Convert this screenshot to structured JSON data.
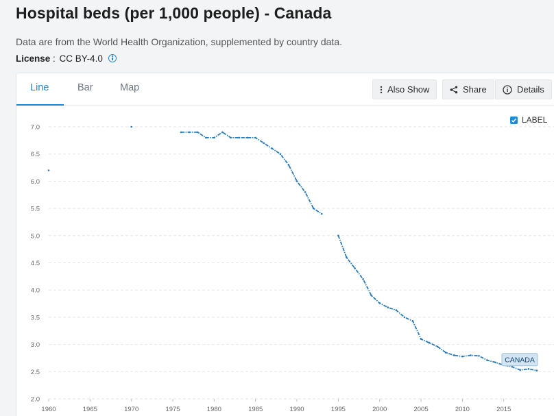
{
  "page": {
    "title": "Hospital beds (per 1,000 people) - Canada",
    "source": "Data are from the World Health Organization, supplemented by country data.",
    "license_label": "License",
    "license_separator": " : ",
    "license_value": "CC BY-4.0"
  },
  "tabs": [
    {
      "label": "Line",
      "active": true
    },
    {
      "label": "Bar",
      "active": false
    },
    {
      "label": "Map",
      "active": false
    }
  ],
  "toolbar": {
    "also_show_label": "Also Show",
    "share_label": "Share",
    "details_label": "Details"
  },
  "label_toggle": {
    "label": "LABEL",
    "checked": true
  },
  "colors": {
    "accent": "#1f8ad6",
    "series_line": "#2a7ab8",
    "end_label_bg": "#d3e5f3",
    "end_label_border": "#9cc0de"
  },
  "icons": {
    "also_show": "vertical-dots-icon",
    "share": "share-icon",
    "details": "info-circle-icon",
    "license_info": "info-icon",
    "label_checkbox": "checkmark-icon"
  },
  "chart_data": {
    "type": "line",
    "title": "",
    "xlabel": "",
    "ylabel": "",
    "xlim": [
      1960,
      2019
    ],
    "ylim": [
      2.0,
      7.0
    ],
    "x_ticks": [
      1960,
      1965,
      1970,
      1975,
      1980,
      1985,
      1990,
      1995,
      2000,
      2005,
      2010,
      2015
    ],
    "y_ticks": [
      "2.0",
      "2.5",
      "3.0",
      "3.5",
      "4.0",
      "4.5",
      "5.0",
      "5.5",
      "6.0",
      "6.5",
      "7.0"
    ],
    "grid": "horizontal dashed",
    "line_style": "dash-dot",
    "series": [
      {
        "name": "",
        "end_label": "CANADA",
        "points": [
          [
            1960,
            6.2
          ],
          [
            1970,
            7.0
          ],
          [
            1976,
            6.9
          ],
          [
            1977,
            6.9
          ],
          [
            1978,
            6.9
          ],
          [
            1979,
            6.8
          ],
          [
            1980,
            6.8
          ],
          [
            1981,
            6.9
          ],
          [
            1982,
            6.8
          ],
          [
            1983,
            6.8
          ],
          [
            1984,
            6.8
          ],
          [
            1985,
            6.8
          ],
          [
            1986,
            6.7
          ],
          [
            1987,
            6.6
          ],
          [
            1988,
            6.5
          ],
          [
            1989,
            6.3
          ],
          [
            1990,
            6.0
          ],
          [
            1991,
            5.8
          ],
          [
            1992,
            5.5
          ],
          [
            1993,
            5.4
          ],
          [
            1995,
            5.0
          ],
          [
            1996,
            4.6
          ],
          [
            1997,
            4.4
          ],
          [
            1998,
            4.2
          ],
          [
            1999,
            3.9
          ],
          [
            2000,
            3.76
          ],
          [
            2001,
            3.68
          ],
          [
            2002,
            3.63
          ],
          [
            2003,
            3.5
          ],
          [
            2004,
            3.43
          ],
          [
            2005,
            3.1
          ],
          [
            2006,
            3.03
          ],
          [
            2007,
            2.96
          ],
          [
            2008,
            2.85
          ],
          [
            2009,
            2.8
          ],
          [
            2010,
            2.78
          ],
          [
            2011,
            2.8
          ],
          [
            2012,
            2.79
          ],
          [
            2013,
            2.71
          ],
          [
            2014,
            2.67
          ],
          [
            2015,
            2.62
          ],
          [
            2016,
            2.59
          ],
          [
            2017,
            2.53
          ],
          [
            2018,
            2.55
          ],
          [
            2019,
            2.52
          ]
        ]
      }
    ]
  }
}
